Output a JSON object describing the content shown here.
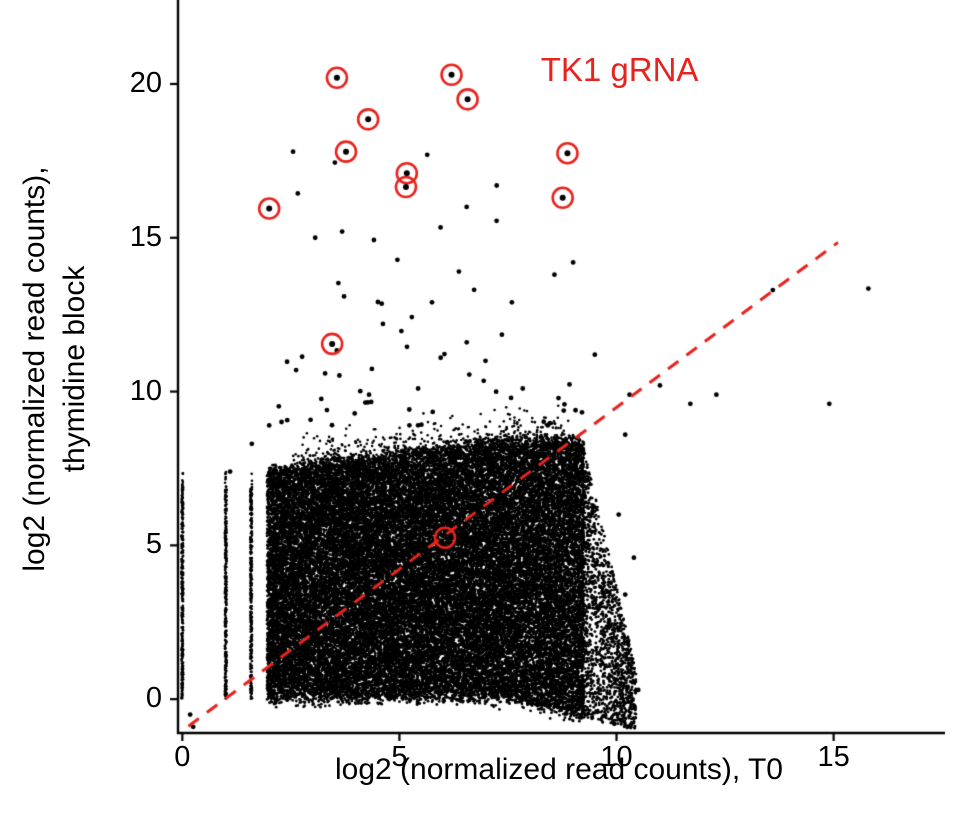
{
  "figure": {
    "background": "#ffffff"
  },
  "chart_data": {
    "type": "scatter",
    "title": "",
    "xlabel": "log2 (normalized read counts), T0",
    "ylabel_line1": "log2 (normalized read counts),",
    "ylabel_line2": "thymidine block",
    "xlim": [
      -0.1,
      17.45
    ],
    "ylim": [
      -1.1,
      22.6
    ],
    "xticks": [
      0,
      5,
      10,
      15
    ],
    "yticks": [
      0,
      5,
      10,
      15,
      20
    ],
    "grid": false,
    "legend": "none",
    "colors": {
      "points": "#000000",
      "accent_red": "#e8231e"
    },
    "annotation": {
      "text": "TK1 gRNA",
      "x": 10.07,
      "y": 20.45
    },
    "identity_line": {
      "x1": 0.14,
      "y1": -0.88,
      "x2": 15.1,
      "y2": 14.85,
      "dash": [
        13,
        10
      ],
      "width": 3
    },
    "tk1_grna_points": [
      [
        3.56,
        20.2
      ],
      [
        6.2,
        20.3
      ],
      [
        6.57,
        19.5
      ],
      [
        4.28,
        18.85
      ],
      [
        3.77,
        17.8
      ],
      [
        8.87,
        17.75
      ],
      [
        5.17,
        17.1
      ],
      [
        5.15,
        16.65
      ],
      [
        2.0,
        15.95
      ],
      [
        8.76,
        16.3
      ],
      [
        3.45,
        11.55
      ]
    ],
    "open_circle_point": [
      6.05,
      5.25
    ],
    "notable_points": [
      [
        2.55,
        17.8
      ],
      [
        3.68,
        15.2
      ],
      [
        3.06,
        15.0
      ],
      [
        4.62,
        12.2
      ],
      [
        2.62,
        10.7
      ],
      [
        5.75,
        12.9
      ],
      [
        6.37,
        13.9
      ],
      [
        7.24,
        16.7
      ],
      [
        7.59,
        12.9
      ],
      [
        6.55,
        11.6
      ],
      [
        5.95,
        11.1
      ],
      [
        5.43,
        10.1
      ],
      [
        4.3,
        9.9
      ],
      [
        3.33,
        9.4
      ],
      [
        8.57,
        13.8
      ],
      [
        7.84,
        10.1
      ],
      [
        9.5,
        11.2
      ],
      [
        10.3,
        9.9
      ],
      [
        11.0,
        10.2
      ],
      [
        11.7,
        9.6
      ],
      [
        12.3,
        9.9
      ],
      [
        13.6,
        13.3
      ],
      [
        15.8,
        13.35
      ],
      [
        14.9,
        9.6
      ],
      [
        10.2,
        8.6
      ],
      [
        10.05,
        6.0
      ],
      [
        10.4,
        4.6
      ],
      [
        10.2,
        3.4
      ],
      [
        10.5,
        0.3
      ],
      [
        9.7,
        -0.55
      ],
      [
        9.95,
        -0.8
      ],
      [
        0.18,
        -0.5
      ],
      [
        0.25,
        -0.9
      ],
      [
        1.1,
        7.4
      ],
      [
        2.0,
        8.9
      ],
      [
        1.6,
        8.3
      ]
    ],
    "generation": {
      "seed": 20,
      "stripes": {
        "x_values": [
          0,
          1,
          1.585
        ],
        "points_per_stripe": 300,
        "y_max": 6.9,
        "jitter": 0.02
      },
      "core": {
        "n": 40000,
        "x_min": 1.95,
        "x_max": 9.25,
        "top_base": 7.15,
        "top_slope": 0.17,
        "top_cap": 8.45,
        "dip_start": 7.5,
        "dip_slope": 0.35,
        "edge_noise": 0.12,
        "dot_r": 1.4
      },
      "right_tail": {
        "n": 1600,
        "x_start": 9.2,
        "x_span": 1.25
      },
      "top_fringe": {
        "n": 320,
        "x_min": 2.5,
        "x_max": 9.0,
        "spread": 0.45
      },
      "upper_scatter": {
        "n": 55,
        "x_min": 2.2,
        "x_max": 9.3,
        "y_min": 8.9,
        "y_span": 8.8,
        "exp": 2.4,
        "dot_r": 2.4
      }
    }
  }
}
